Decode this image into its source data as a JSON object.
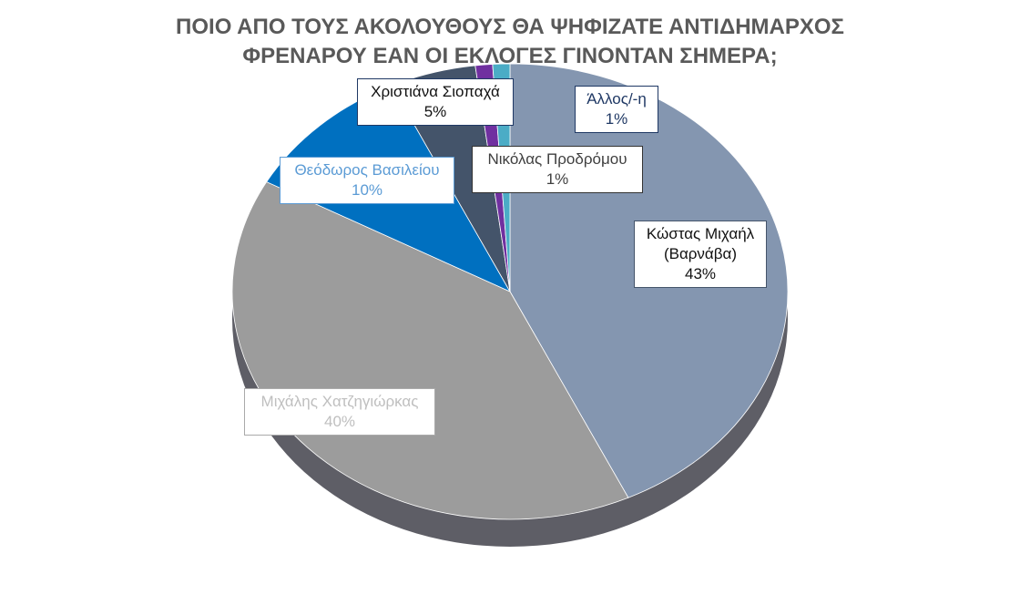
{
  "chart_data": {
    "type": "pie",
    "title": "ΠΟΙΟ ΑΠΟ ΤΟΥΣ ΑΚΟΛΟΥΘΟΥΣ ΘΑ ΨΗΦΙΖΑΤΕ ΑΝΤΙΔΗΜΑΡΧΟΣ ΦΡΕΝΑΡΟΥ ΕΑΝ ΟΙ ΕΚΛΟΓΕΣ ΓΙΝΟΝΤΑΝ ΣΗΜΕΡΑ;",
    "categories": [
      "Κώστας Μιχαήλ (Βαρνάβα)",
      "Μιχάλης Χατζηγιώρκας",
      "Θεόδωρος Βασιλείου",
      "Χριστιάνα Σιοπαχά",
      "Νικόλας Προδρόμου",
      "Άλλος/-η"
    ],
    "values": [
      43,
      40,
      10,
      5,
      1,
      1
    ],
    "value_labels": [
      "43%",
      "40%",
      "10%",
      "5%",
      "1%",
      "1%"
    ],
    "colors": [
      "#8496b0",
      "#9c9c9c",
      "#0070c0",
      "#44546a",
      "#7030a0",
      "#4bacc6"
    ]
  }
}
